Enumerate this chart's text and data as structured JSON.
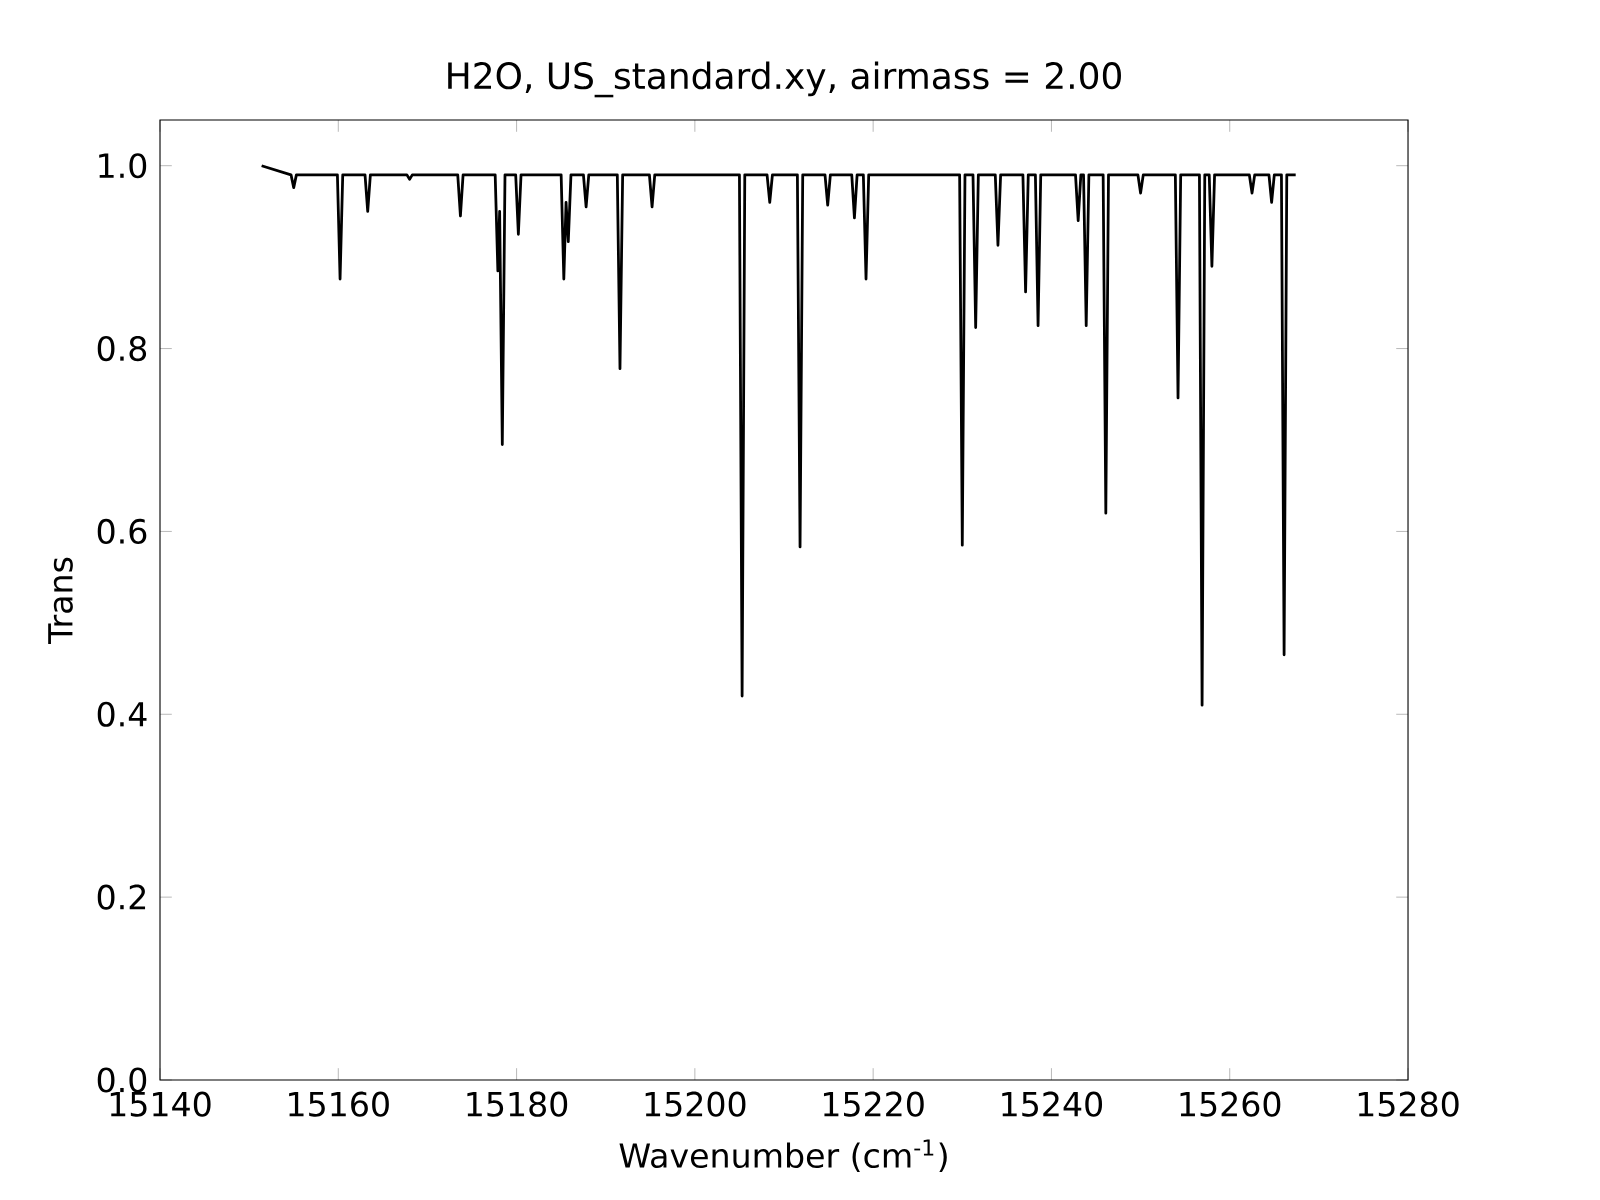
{
  "chart_data": {
    "type": "line",
    "title": "H2O, US_standard.xy, airmass = 2.00",
    "xlabel": "Wavenumber (cm$^{-1}$)",
    "ylabel": "Trans",
    "xlim": [
      15140,
      15280
    ],
    "ylim": [
      0,
      1.05
    ],
    "xticks": [
      15140,
      15160,
      15180,
      15200,
      15220,
      15240,
      15260,
      15280
    ],
    "yticks": [
      {
        "value": 0,
        "label": "0.0"
      },
      {
        "value": 0.2,
        "label": "0.2"
      },
      {
        "value": 0.4,
        "label": "0.4"
      },
      {
        "value": 0.6,
        "label": "0.6"
      },
      {
        "value": 0.8,
        "label": "0.8"
      },
      {
        "value": 1.0,
        "label": "1.0"
      }
    ],
    "series": [
      {
        "color": "#000000",
        "x": [
          15151.4,
          15154.7,
          15155.0,
          15155.3,
          15159.9,
          15160.2,
          15160.5,
          15163.0,
          15163.3,
          15163.6,
          15167.7,
          15168.0,
          15168.3,
          15173.4,
          15173.7,
          15174.0,
          15177.6,
          15177.9,
          15178.1,
          15178.4,
          15178.7,
          15179.9,
          15180.2,
          15180.5,
          15185.0,
          15185.3,
          15185.55,
          15185.8,
          15186.1,
          15187.5,
          15187.8,
          15188.1,
          15191.3,
          15191.6,
          15191.9,
          15194.9,
          15195.2,
          15195.5,
          15205.0,
          15205.3,
          15205.6,
          15208.1,
          15208.4,
          15208.7,
          15211.5,
          15211.8,
          15212.1,
          15214.6,
          15214.9,
          15215.2,
          15217.6,
          15217.9,
          15218.2,
          15218.9,
          15219.2,
          15219.5,
          15229.7,
          15230.0,
          15230.3,
          15231.2,
          15231.5,
          15231.8,
          15233.7,
          15234.0,
          15234.3,
          15236.8,
          15237.1,
          15237.4,
          15238.2,
          15238.5,
          15238.8,
          15242.7,
          15243.0,
          15243.3,
          15243.6,
          15243.9,
          15244.2,
          15245.8,
          15246.1,
          15246.4,
          15249.7,
          15250.0,
          15250.3,
          15253.9,
          15254.2,
          15254.5,
          15256.6,
          15256.9,
          15257.2,
          15257.7,
          15258.0,
          15258.3,
          15262.2,
          15262.5,
          15262.8,
          15264.4,
          15264.7,
          15265.0,
          15265.8,
          15266.1,
          15266.4,
          15267.4
        ],
        "values": [
          1.0,
          0.99,
          0.976,
          0.99,
          0.99,
          0.876,
          0.99,
          0.99,
          0.95,
          0.99,
          0.99,
          0.985,
          0.99,
          0.99,
          0.945,
          0.99,
          0.99,
          0.885,
          0.95,
          0.695,
          0.99,
          0.99,
          0.925,
          0.99,
          0.99,
          0.876,
          0.96,
          0.917,
          0.99,
          0.99,
          0.955,
          0.99,
          0.99,
          0.778,
          0.99,
          0.99,
          0.955,
          0.99,
          0.99,
          0.42,
          0.99,
          0.99,
          0.96,
          0.99,
          0.99,
          0.583,
          0.99,
          0.99,
          0.957,
          0.99,
          0.99,
          0.943,
          0.99,
          0.99,
          0.876,
          0.99,
          0.99,
          0.585,
          0.99,
          0.99,
          0.823,
          0.99,
          0.99,
          0.913,
          0.99,
          0.99,
          0.862,
          0.99,
          0.99,
          0.825,
          0.99,
          0.99,
          0.94,
          0.99,
          0.99,
          0.825,
          0.99,
          0.99,
          0.62,
          0.99,
          0.99,
          0.97,
          0.99,
          0.99,
          0.746,
          0.99,
          0.99,
          0.41,
          0.99,
          0.99,
          0.89,
          0.99,
          0.99,
          0.97,
          0.99,
          0.99,
          0.96,
          0.99,
          0.99,
          0.465,
          0.99,
          0.99
        ]
      }
    ]
  }
}
